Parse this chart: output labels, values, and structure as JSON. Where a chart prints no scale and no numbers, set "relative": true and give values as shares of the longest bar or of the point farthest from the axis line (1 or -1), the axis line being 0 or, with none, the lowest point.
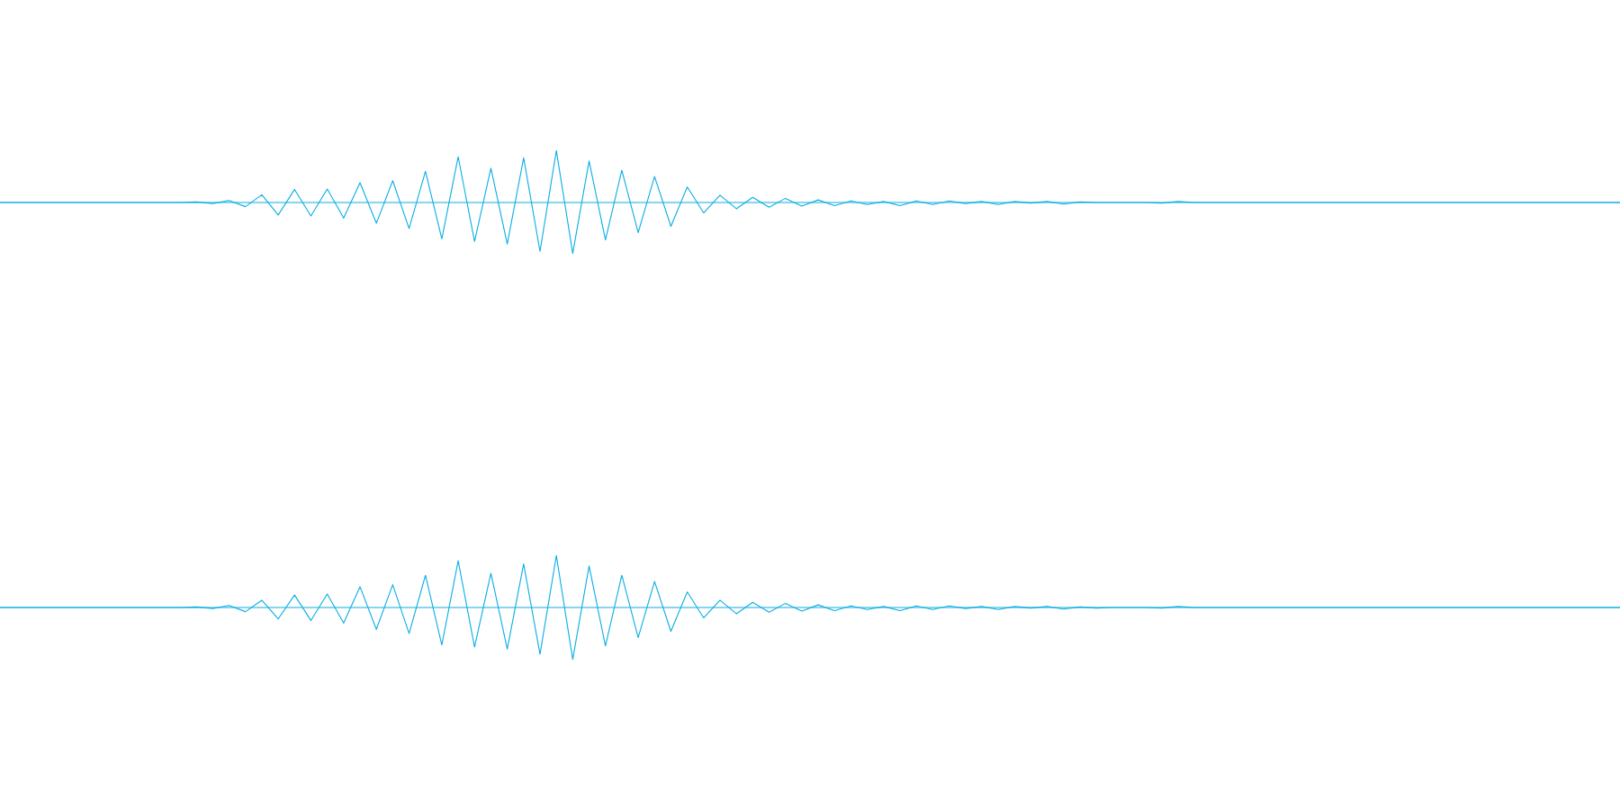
{
  "chart_data": [
    {
      "type": "line",
      "relative": true,
      "ref_lines": [
        {
          "axis": "y",
          "value": 0,
          "color": "#0aaee4"
        }
      ],
      "categories": [
        null,
        null,
        null,
        null,
        null,
        null,
        null,
        null,
        null,
        null,
        null,
        null,
        null,
        null,
        null,
        null,
        null,
        null,
        null,
        null,
        null,
        null,
        null,
        null,
        null,
        null,
        null,
        null,
        null,
        null,
        null,
        null,
        null,
        null,
        null,
        null,
        null,
        null,
        null,
        null,
        null,
        null,
        null,
        null,
        null,
        null,
        null,
        null,
        null,
        null,
        null,
        null,
        null,
        null,
        null,
        null,
        null,
        null,
        null,
        null,
        null,
        null,
        null,
        null,
        null,
        null,
        null,
        null,
        null,
        null,
        null,
        null,
        null,
        null,
        null,
        null,
        null,
        null,
        null,
        null,
        null,
        null,
        null,
        null,
        null,
        null,
        null,
        null,
        null,
        null,
        null,
        null,
        null,
        null,
        null,
        null,
        null,
        null,
        null,
        null
      ],
      "series": [
        {
          "color": "#0aaee4",
          "values": [
            0,
            0,
            0,
            0,
            0,
            0,
            0,
            0,
            0,
            0,
            0,
            0,
            0.01,
            -0.02,
            0.04,
            -0.08,
            0.15,
            -0.24,
            0.25,
            -0.26,
            0.26,
            -0.3,
            0.38,
            -0.4,
            0.42,
            -0.5,
            0.6,
            -0.7,
            0.88,
            -0.75,
            0.66,
            -0.8,
            0.86,
            -0.94,
            1.0,
            -0.98,
            0.8,
            -0.72,
            0.62,
            -0.58,
            0.5,
            -0.46,
            0.3,
            -0.2,
            0.14,
            -0.12,
            0.1,
            -0.09,
            0.08,
            -0.07,
            0.05,
            -0.06,
            0.03,
            -0.04,
            0.02,
            -0.06,
            0.03,
            -0.04,
            0.03,
            -0.02,
            0.02,
            -0.04,
            0.02,
            -0.01,
            0.02,
            -0.03,
            0.01,
            0,
            0,
            0,
            0,
            -0.01,
            0.02,
            0,
            0,
            0,
            0,
            0,
            0,
            0,
            0,
            0,
            0,
            0,
            0,
            0,
            0,
            0,
            0,
            0,
            0,
            0,
            0,
            0,
            0,
            0,
            0,
            0,
            0,
            0
          ]
        }
      ]
    },
    {
      "type": "line",
      "relative": true,
      "ref_lines": [
        {
          "axis": "y",
          "value": 0,
          "color": "#0aaee4"
        }
      ],
      "categories": [
        null,
        null,
        null,
        null,
        null,
        null,
        null,
        null,
        null,
        null,
        null,
        null,
        null,
        null,
        null,
        null,
        null,
        null,
        null,
        null,
        null,
        null,
        null,
        null,
        null,
        null,
        null,
        null,
        null,
        null,
        null,
        null,
        null,
        null,
        null,
        null,
        null,
        null,
        null,
        null,
        null,
        null,
        null,
        null,
        null,
        null,
        null,
        null,
        null,
        null,
        null,
        null,
        null,
        null,
        null,
        null,
        null,
        null,
        null,
        null,
        null,
        null,
        null,
        null,
        null,
        null,
        null,
        null,
        null,
        null,
        null,
        null,
        null,
        null,
        null,
        null,
        null,
        null,
        null,
        null,
        null,
        null,
        null,
        null,
        null,
        null,
        null,
        null,
        null,
        null,
        null,
        null,
        null,
        null,
        null,
        null,
        null,
        null,
        null,
        null
      ],
      "series": [
        {
          "color": "#0aaee4",
          "values": [
            0,
            0,
            0,
            0,
            0,
            0,
            0,
            0,
            0,
            0,
            0,
            0,
            0.01,
            -0.02,
            0.04,
            -0.08,
            0.14,
            -0.22,
            0.24,
            -0.25,
            0.26,
            -0.3,
            0.4,
            -0.42,
            0.44,
            -0.5,
            0.62,
            -0.72,
            0.9,
            -0.76,
            0.66,
            -0.8,
            0.84,
            -0.9,
            1.0,
            -1.0,
            0.8,
            -0.74,
            0.62,
            -0.58,
            0.5,
            -0.46,
            0.3,
            -0.2,
            0.14,
            -0.12,
            0.1,
            -0.09,
            0.08,
            -0.07,
            0.05,
            -0.06,
            0.03,
            -0.04,
            0.02,
            -0.06,
            0.03,
            -0.04,
            0.03,
            -0.02,
            0.02,
            -0.04,
            0.02,
            -0.01,
            0.02,
            -0.03,
            0.01,
            -0.01,
            0,
            0,
            0,
            -0.01,
            0.02,
            0,
            0,
            0,
            0,
            0,
            0,
            0,
            0,
            0,
            0,
            0,
            0,
            0,
            0,
            0,
            0,
            0,
            0,
            0,
            0,
            0,
            0,
            0,
            0,
            0,
            0,
            0
          ]
        }
      ]
    }
  ]
}
